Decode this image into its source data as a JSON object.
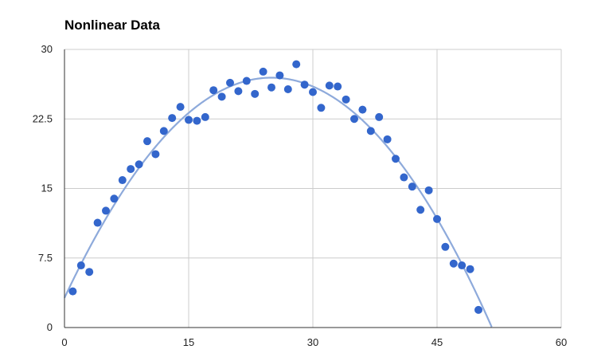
{
  "chart_data": {
    "type": "scatter",
    "title": "Nonlinear Data",
    "xlabel": "",
    "ylabel": "",
    "xlim": [
      0,
      60
    ],
    "ylim": [
      0,
      30
    ],
    "x_ticks": [
      "0",
      "15",
      "30",
      "45",
      "60"
    ],
    "x_tick_values": [
      0,
      15,
      30,
      45,
      60
    ],
    "y_ticks": [
      "0",
      "7.5",
      "15",
      "22.5",
      "30"
    ],
    "y_tick_values": [
      0,
      7.5,
      15,
      22.5,
      30
    ],
    "grid": true,
    "legend": "none",
    "trendline": {
      "type": "polynomial",
      "degree": 2,
      "coefficients": [
        3.2,
        1.9,
        -0.038
      ]
    },
    "series": [
      {
        "color": "#3366cc",
        "points": [
          [
            1,
            3.9
          ],
          [
            2,
            6.7
          ],
          [
            3,
            6.0
          ],
          [
            4,
            11.3
          ],
          [
            5,
            12.6
          ],
          [
            6,
            13.9
          ],
          [
            7,
            15.9
          ],
          [
            8,
            17.1
          ],
          [
            9,
            17.6
          ],
          [
            10,
            20.1
          ],
          [
            11,
            18.7
          ],
          [
            12,
            21.2
          ],
          [
            13,
            22.6
          ],
          [
            14,
            23.8
          ],
          [
            15,
            22.4
          ],
          [
            16,
            22.3
          ],
          [
            17,
            22.7
          ],
          [
            18,
            25.6
          ],
          [
            19,
            24.9
          ],
          [
            20,
            26.4
          ],
          [
            21,
            25.5
          ],
          [
            22,
            26.6
          ],
          [
            23,
            25.2
          ],
          [
            24,
            27.6
          ],
          [
            25,
            25.9
          ],
          [
            26,
            27.2
          ],
          [
            27,
            25.7
          ],
          [
            28,
            28.4
          ],
          [
            29,
            26.2
          ],
          [
            30,
            25.4
          ],
          [
            31,
            23.7
          ],
          [
            32,
            26.1
          ],
          [
            33,
            26.0
          ],
          [
            34,
            24.6
          ],
          [
            35,
            22.5
          ],
          [
            36,
            23.5
          ],
          [
            37,
            21.2
          ],
          [
            38,
            22.7
          ],
          [
            39,
            20.3
          ],
          [
            40,
            18.2
          ],
          [
            41,
            16.2
          ],
          [
            42,
            15.2
          ],
          [
            43,
            12.7
          ],
          [
            44,
            14.8
          ],
          [
            45,
            11.7
          ],
          [
            46,
            8.7
          ],
          [
            47,
            6.9
          ],
          [
            48,
            6.7
          ],
          [
            49,
            6.3
          ],
          [
            50,
            1.9
          ]
        ]
      }
    ],
    "colors": {
      "points": "#3366cc",
      "trendline": "#8eaadb",
      "grid": "#cccccc",
      "axis": "#333333"
    }
  }
}
